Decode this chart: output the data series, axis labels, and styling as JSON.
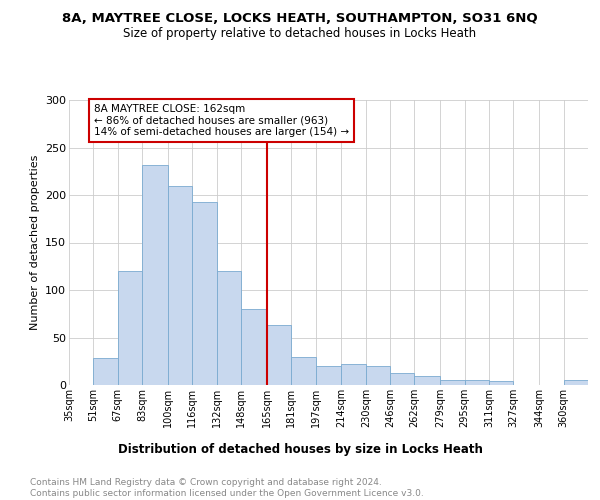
{
  "title": "8A, MAYTREE CLOSE, LOCKS HEATH, SOUTHAMPTON, SO31 6NQ",
  "subtitle": "Size of property relative to detached houses in Locks Heath",
  "xlabel": "Distribution of detached houses by size in Locks Heath",
  "ylabel": "Number of detached properties",
  "bar_labels": [
    "35sqm",
    "51sqm",
    "67sqm",
    "83sqm",
    "100sqm",
    "116sqm",
    "132sqm",
    "148sqm",
    "165sqm",
    "181sqm",
    "197sqm",
    "214sqm",
    "230sqm",
    "246sqm",
    "262sqm",
    "279sqm",
    "295sqm",
    "311sqm",
    "327sqm",
    "344sqm",
    "360sqm"
  ],
  "bar_heights_full": [
    0,
    28,
    120,
    232,
    210,
    193,
    120,
    80,
    63,
    30,
    20,
    22,
    20,
    13,
    10,
    5,
    5,
    4,
    0,
    0,
    5
  ],
  "property_line_x": 8,
  "bar_color": "#c8d8ee",
  "bar_edge_color": "#7aaad0",
  "line_color": "#cc0000",
  "annotation_text": "8A MAYTREE CLOSE: 162sqm\n← 86% of detached houses are smaller (963)\n14% of semi-detached houses are larger (154) →",
  "ylim": [
    0,
    300
  ],
  "yticks": [
    0,
    50,
    100,
    150,
    200,
    250,
    300
  ],
  "footer_text": "Contains HM Land Registry data © Crown copyright and database right 2024.\nContains public sector information licensed under the Open Government Licence v3.0.",
  "bin_edges": [
    35,
    51,
    67,
    83,
    100,
    116,
    132,
    148,
    165,
    181,
    197,
    214,
    230,
    246,
    262,
    279,
    295,
    311,
    327,
    344,
    360,
    376
  ]
}
